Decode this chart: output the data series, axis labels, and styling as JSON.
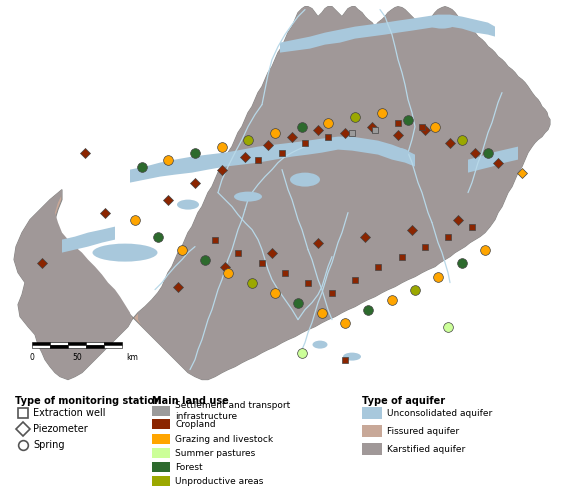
{
  "figsize": [
    5.64,
    4.99
  ],
  "dpi": 100,
  "colors": {
    "fissured": "#C8A898",
    "karstified": "#A09898",
    "unconsolidated": "#A8C8DC",
    "river": "#B8D8E8",
    "outline": "#888888",
    "background": "white"
  },
  "legend": {
    "monitoring_station": {
      "title": "Type of monitoring station",
      "items": [
        {
          "label": "Extraction well",
          "marker": "s"
        },
        {
          "label": "Piezometer",
          "marker": "D"
        },
        {
          "label": "Spring",
          "marker": "o"
        }
      ]
    },
    "land_use": {
      "title": "Main land use",
      "items": [
        {
          "label": "Settlement and transport\ninfrastructure",
          "color": "#9B9B9B"
        },
        {
          "label": "Cropland",
          "color": "#8B2500"
        },
        {
          "label": "Grazing and livestock",
          "color": "#FFA500"
        },
        {
          "label": "Summer pastures",
          "color": "#CCFF99"
        },
        {
          "label": "Forest",
          "color": "#2D6A2D"
        },
        {
          "label": "Unproductive areas",
          "color": "#9BA800"
        }
      ]
    },
    "aquifer": {
      "title": "Type of aquifer",
      "items": [
        {
          "label": "Unconsolidated aquifer",
          "color": "#A8C8DC"
        },
        {
          "label": "Fissured aquifer",
          "color": "#C8A898"
        },
        {
          "label": "Karstified aquifer",
          "color": "#A09898"
        }
      ]
    }
  }
}
